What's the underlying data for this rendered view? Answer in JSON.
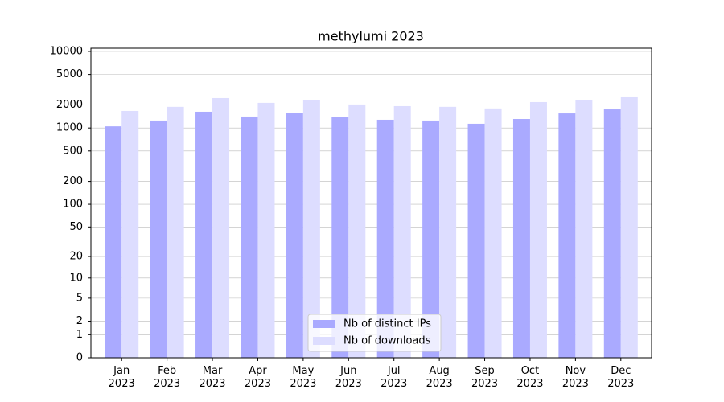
{
  "chart_data": {
    "type": "bar",
    "title": "methylumi 2023",
    "categories": [
      "Jan\n2023",
      "Feb\n2023",
      "Mar\n2023",
      "Apr\n2023",
      "May\n2023",
      "Jun\n2023",
      "Jul\n2023",
      "Aug\n2023",
      "Sep\n2023",
      "Oct\n2023",
      "Nov\n2023",
      "Dec\n2023"
    ],
    "series": [
      {
        "name": "Nb of distinct IPs",
        "color": "#aaaaff",
        "values": [
          1050,
          1250,
          1630,
          1410,
          1590,
          1380,
          1280,
          1250,
          1135,
          1310,
          1550,
          1750
        ]
      },
      {
        "name": "Nb of downloads",
        "color": "#ddddff",
        "values": [
          1670,
          1890,
          2460,
          2130,
          2340,
          2030,
          1930,
          1890,
          1800,
          2180,
          2290,
          2520
        ]
      }
    ],
    "yscale": "log1p",
    "ylim": [
      0,
      11000
    ],
    "yticks": [
      0,
      1,
      2,
      5,
      10,
      20,
      50,
      100,
      200,
      500,
      1000,
      2000,
      5000,
      10000
    ],
    "grid": true,
    "legend": "lower center"
  }
}
